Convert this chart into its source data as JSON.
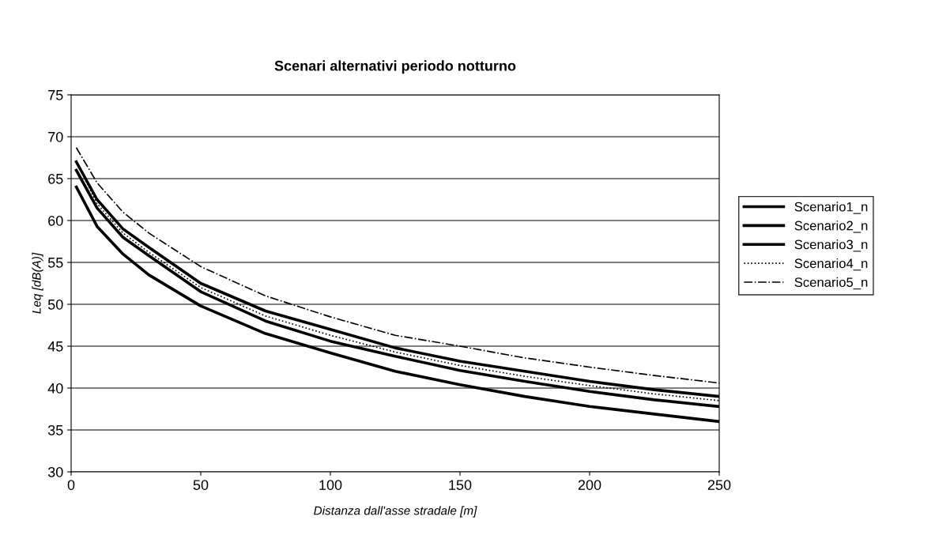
{
  "chart_data": {
    "type": "line",
    "title": "Scenari alternativi periodo notturno",
    "xlabel": "Distanza dall'asse stradale [m]",
    "ylabel": "Leq [dB(A)]",
    "x": [
      2,
      10,
      20,
      30,
      50,
      75,
      100,
      125,
      150,
      175,
      200,
      225,
      250
    ],
    "series": [
      {
        "name": "Scenario1_n",
        "color": "#000000",
        "line_style": "solid",
        "values": [
          67,
          62.5,
          59,
          56.8,
          52.5,
          49.2,
          47,
          44.8,
          43.2,
          42,
          40.8,
          39.8,
          39
        ]
      },
      {
        "name": "Scenario2_n",
        "color": "#000000",
        "line_style": "solid",
        "values": [
          66,
          61.5,
          58,
          55.8,
          51.5,
          48,
          45.6,
          43.8,
          42.1,
          40.8,
          39.6,
          38.6,
          37.8
        ]
      },
      {
        "name": "Scenario3_n",
        "color": "#000000",
        "line_style": "solid",
        "values": [
          64,
          59.3,
          56,
          53.5,
          49.8,
          46.5,
          44.2,
          42,
          40.4,
          39,
          37.8,
          36.9,
          36
        ]
      },
      {
        "name": "Scenario4_n",
        "color": "#000000",
        "line_style": "dotted",
        "values": [
          67,
          62,
          58.5,
          56.2,
          52,
          48.6,
          46.3,
          44.3,
          42.7,
          41.4,
          40.3,
          39.3,
          38.5
        ]
      },
      {
        "name": "Scenario5_n",
        "color": "#000000",
        "line_style": "dashdot",
        "values": [
          68.7,
          64.5,
          61,
          58.5,
          54.5,
          51,
          48.5,
          46.3,
          45,
          43.6,
          42.5,
          41.5,
          40.6
        ]
      }
    ],
    "xlim": [
      0,
      250
    ],
    "xticks": [
      0,
      50,
      100,
      150,
      200,
      250
    ],
    "ylim": [
      30,
      75
    ],
    "yticks": [
      30,
      35,
      40,
      45,
      50,
      55,
      60,
      65,
      70,
      75
    ],
    "grid": "y",
    "legend": "right"
  }
}
